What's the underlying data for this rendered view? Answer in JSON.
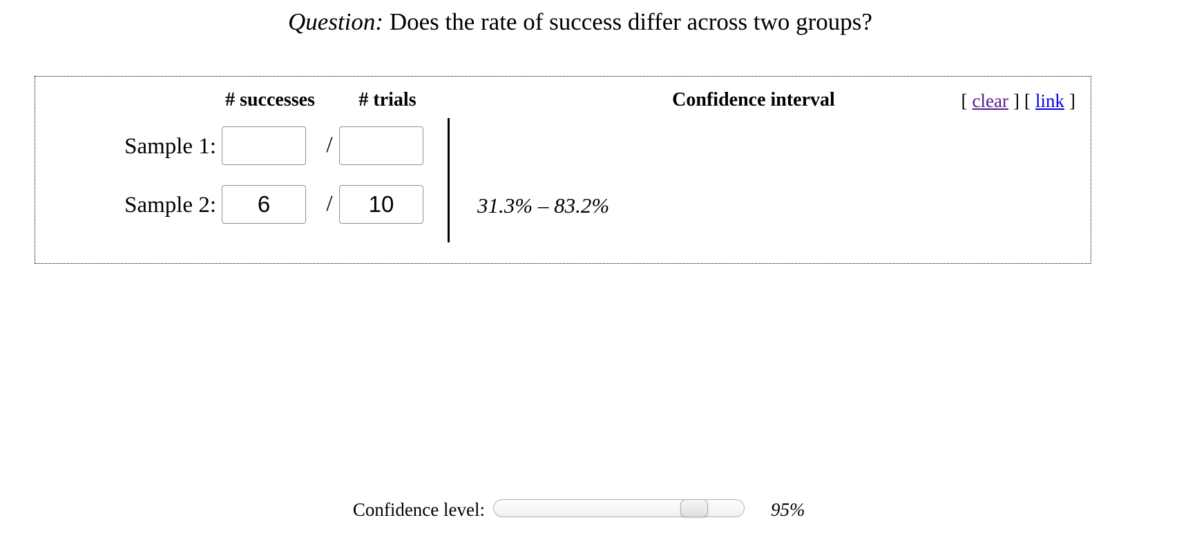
{
  "title": {
    "prefix": "Question:",
    "rest": " Does the rate of success differ across two groups?"
  },
  "panel": {
    "headers": {
      "successes": "# successes",
      "trials": "# trials",
      "interval": "Confidence interval"
    },
    "actions": {
      "open": "[",
      "close": "]",
      "clear": "clear",
      "link": "link"
    },
    "slash": "/",
    "rows": [
      {
        "label": "Sample 1:",
        "successes": "",
        "trials": "",
        "interval": ""
      },
      {
        "label": "Sample 2:",
        "successes": "6",
        "trials": "10",
        "interval": "31.3% – 83.2%"
      }
    ]
  },
  "confidence": {
    "label": "Confidence level:",
    "value": "95%",
    "slider_value": "84"
  },
  "colors": {
    "clear_link": "#551a8b",
    "share_link": "#0000ee",
    "text": "#000000",
    "background": "#ffffff"
  }
}
